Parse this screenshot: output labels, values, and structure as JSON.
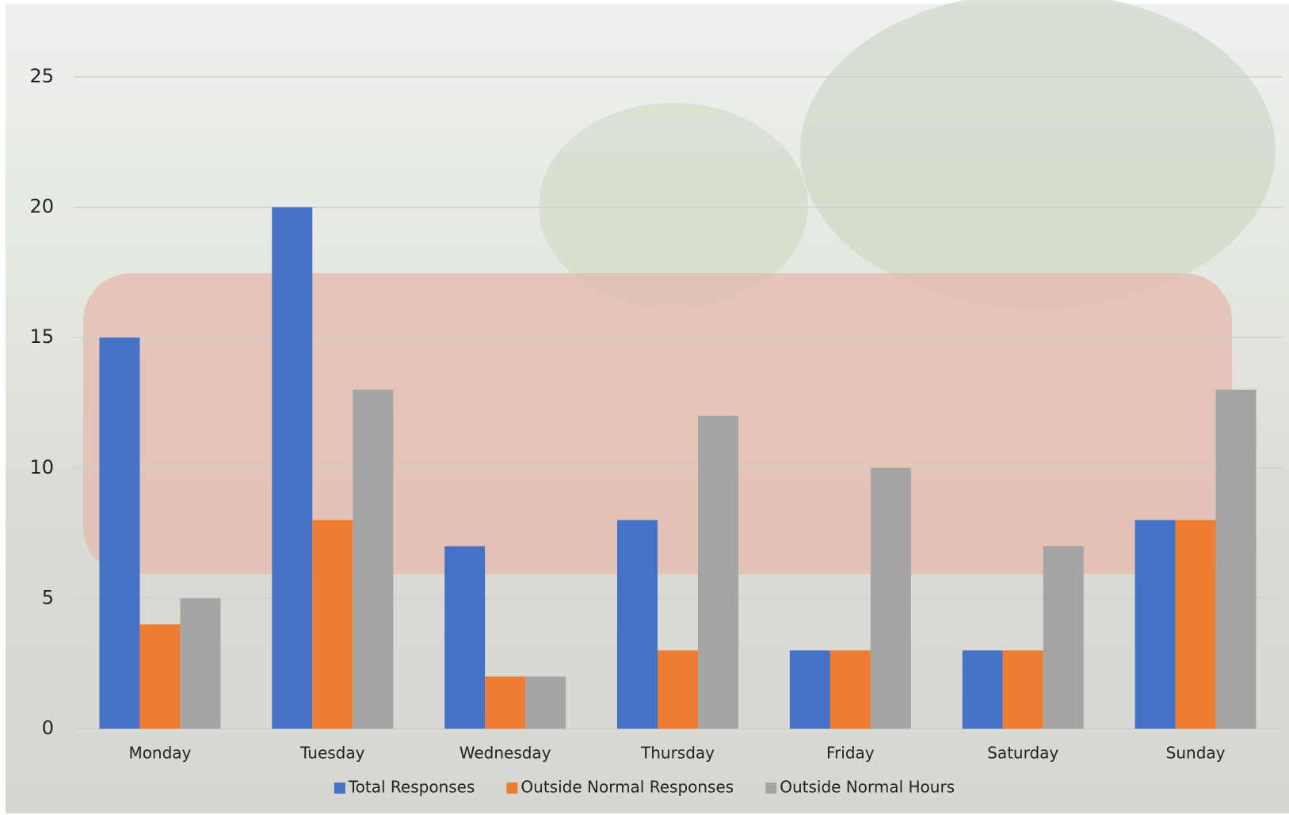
{
  "chart_data": {
    "type": "bar",
    "categories": [
      "Monday",
      "Tuesday",
      "Wednesday",
      "Thursday",
      "Friday",
      "Saturday",
      "Sunday"
    ],
    "series": [
      {
        "name": "Total Responses",
        "color": "#4472c4",
        "values": [
          15,
          20,
          7,
          8,
          3,
          3,
          8
        ]
      },
      {
        "name": "Outside Normal Responses",
        "color": "#ed7d31",
        "values": [
          4,
          8,
          2,
          3,
          3,
          3,
          8
        ]
      },
      {
        "name": "Outside Normal Hours",
        "color": "#a5a5a5",
        "values": [
          5,
          13,
          2,
          12,
          10,
          7,
          13
        ]
      }
    ],
    "ylim": [
      0,
      25
    ],
    "yticks": [
      0,
      5,
      10,
      15,
      20,
      25
    ],
    "grid": true,
    "legend": "bottom"
  }
}
